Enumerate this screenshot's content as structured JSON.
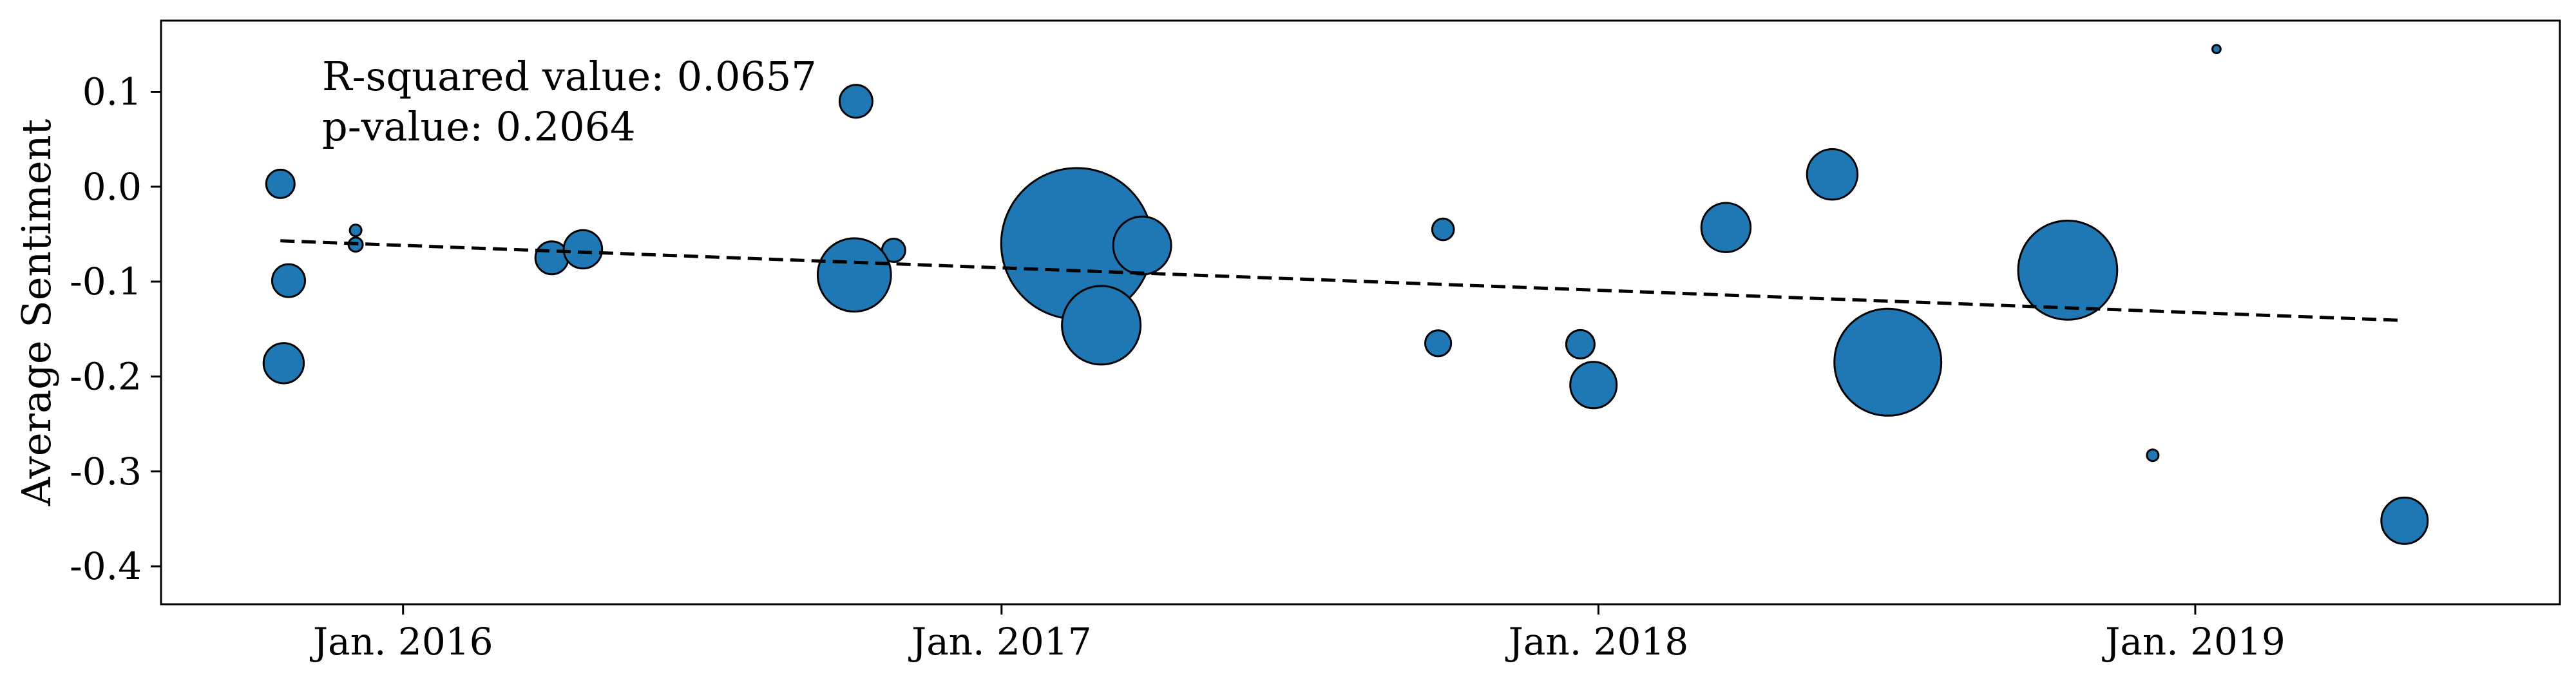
{
  "chart_data": {
    "type": "scatter",
    "title": "",
    "xlabel": "",
    "ylabel": "Average Sentiment",
    "x_axis_kind": "date",
    "xlim": [
      "2015-08-06",
      "2019-08-12"
    ],
    "ylim": [
      -0.44,
      0.175
    ],
    "x_ticks": [
      {
        "date": "2016-01-01",
        "label": "Jan. 2016"
      },
      {
        "date": "2017-01-01",
        "label": "Jan. 2017"
      },
      {
        "date": "2018-01-01",
        "label": "Jan. 2018"
      },
      {
        "date": "2019-01-01",
        "label": "Jan. 2019"
      }
    ],
    "y_ticks": [
      {
        "value": 0.1,
        "label": "0.1"
      },
      {
        "value": 0.0,
        "label": "0.0"
      },
      {
        "value": -0.1,
        "label": "-0.1"
      },
      {
        "value": -0.2,
        "label": "-0.2"
      },
      {
        "value": -0.3,
        "label": "-0.3"
      },
      {
        "value": -0.4,
        "label": "-0.4"
      }
    ],
    "grid": false,
    "legend": "none",
    "marker_color": "#1f77b4",
    "marker_edge_color": "#000000",
    "points": [
      {
        "date": "2015-10-18",
        "y": 0.003,
        "size": 6
      },
      {
        "date": "2015-10-23",
        "y": -0.099,
        "size": 8
      },
      {
        "date": "2015-10-20",
        "y": -0.186,
        "size": 12
      },
      {
        "date": "2015-12-03",
        "y": -0.046,
        "size": 1
      },
      {
        "date": "2015-12-03",
        "y": -0.061,
        "size": 1.5
      },
      {
        "date": "2016-04-01",
        "y": -0.075,
        "size": 8
      },
      {
        "date": "2016-04-20",
        "y": -0.066,
        "size": 11
      },
      {
        "date": "2016-10-04",
        "y": 0.09,
        "size": 8
      },
      {
        "date": "2016-10-27",
        "y": -0.067,
        "size": 4
      },
      {
        "date": "2016-10-03",
        "y": -0.093,
        "size": 40
      },
      {
        "date": "2017-02-16",
        "y": -0.06,
        "size": 170
      },
      {
        "date": "2017-03-28",
        "y": -0.062,
        "size": 25
      },
      {
        "date": "2017-03-03",
        "y": -0.146,
        "size": 46
      },
      {
        "date": "2017-09-28",
        "y": -0.045,
        "size": 3.5
      },
      {
        "date": "2017-09-25",
        "y": -0.165,
        "size": 5
      },
      {
        "date": "2017-12-21",
        "y": -0.166,
        "size": 6
      },
      {
        "date": "2017-12-29",
        "y": -0.209,
        "size": 16
      },
      {
        "date": "2018-03-20",
        "y": -0.043,
        "size": 18
      },
      {
        "date": "2018-05-24",
        "y": 0.013,
        "size": 19
      },
      {
        "date": "2018-06-27",
        "y": -0.185,
        "size": 85
      },
      {
        "date": "2018-10-15",
        "y": -0.088,
        "size": 73
      },
      {
        "date": "2018-12-06",
        "y": -0.283,
        "size": 1
      },
      {
        "date": "2019-01-14",
        "y": 0.145,
        "size": 0.5
      },
      {
        "date": "2019-05-09",
        "y": -0.352,
        "size": 16
      }
    ],
    "trendline": {
      "style": "dashed",
      "color": "#000000",
      "start": {
        "date": "2015-10-18",
        "y": -0.057
      },
      "end": {
        "date": "2019-05-09",
        "y": -0.141
      }
    },
    "annotations": [
      "R-squared value: 0.0657",
      "p-value: 0.2064"
    ]
  }
}
